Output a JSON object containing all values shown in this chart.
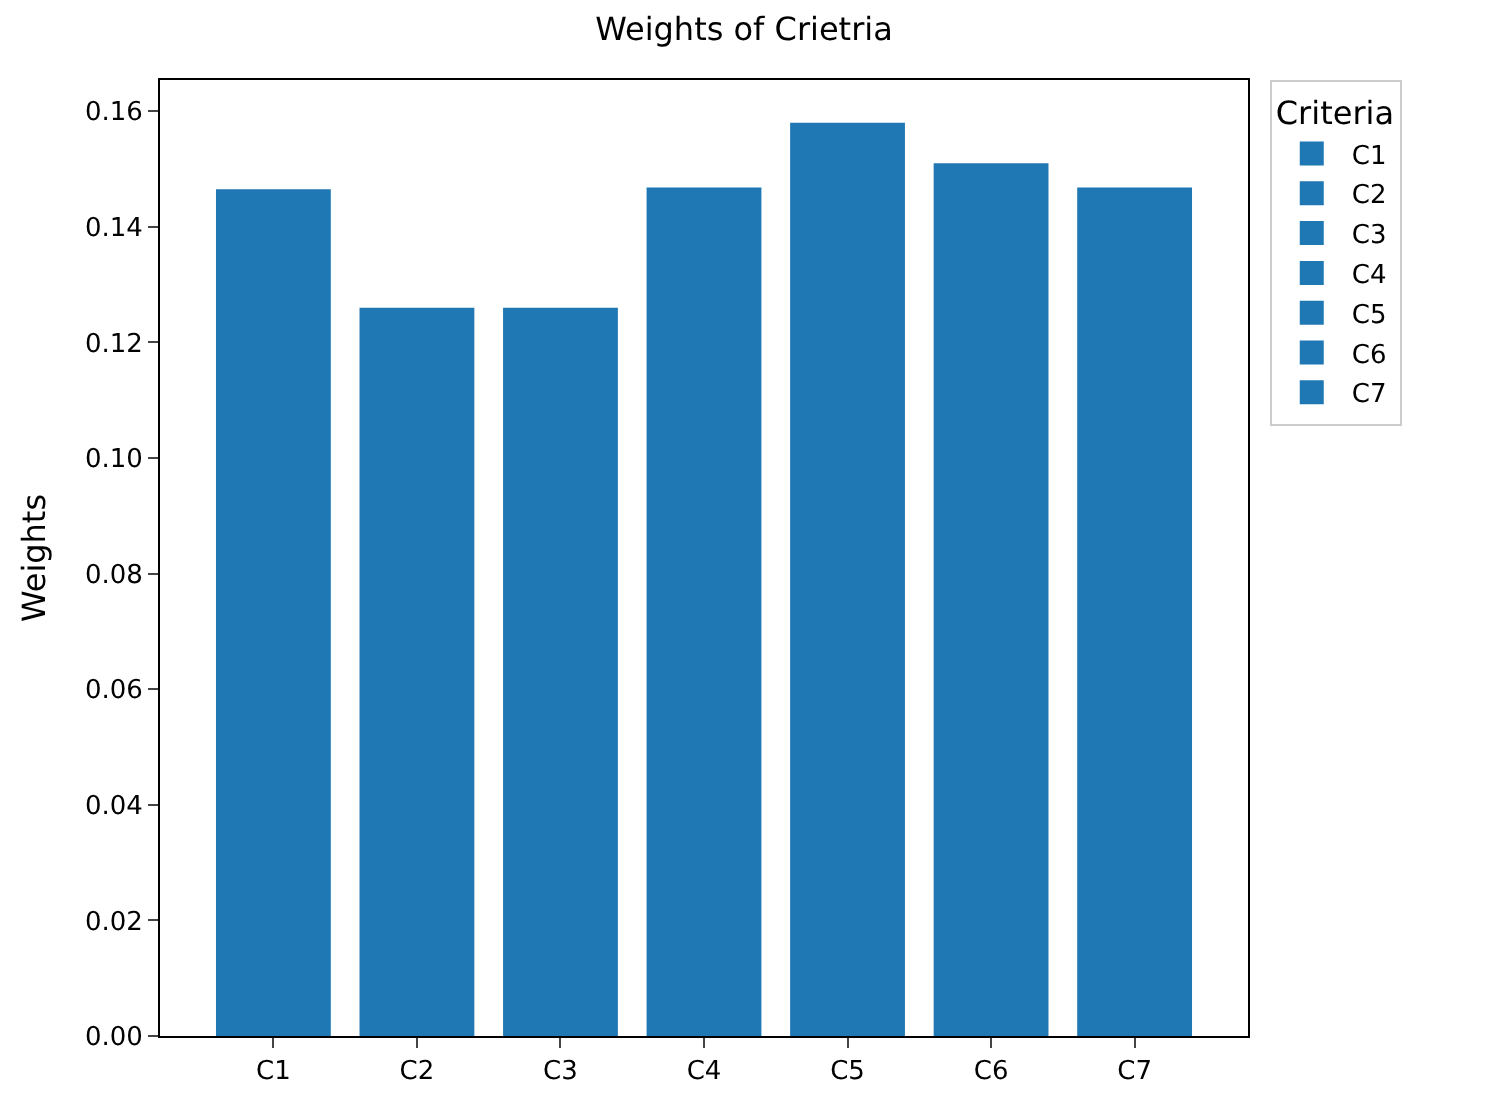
{
  "chart_data": {
    "type": "bar",
    "title": "Weights of Crietria",
    "ylabel": "Weights",
    "legend_title": "Criteria",
    "categories": [
      "C1",
      "C2",
      "C3",
      "C4",
      "C5",
      "C6",
      "C7"
    ],
    "series": [
      {
        "name": "C1",
        "color": "#1f77b4",
        "values": [
          0.1465,
          null,
          null,
          null,
          null,
          null,
          null
        ]
      },
      {
        "name": "C2",
        "color": "#1f77b4",
        "values": [
          null,
          0.126,
          null,
          null,
          null,
          null,
          null
        ]
      },
      {
        "name": "C3",
        "color": "#1f77b4",
        "values": [
          null,
          null,
          0.126,
          null,
          null,
          null,
          null
        ]
      },
      {
        "name": "C4",
        "color": "#1f77b4",
        "values": [
          null,
          null,
          null,
          0.1468,
          null,
          null,
          null
        ]
      },
      {
        "name": "C5",
        "color": "#1f77b4",
        "values": [
          null,
          null,
          null,
          null,
          0.158,
          null,
          null
        ]
      },
      {
        "name": "C6",
        "color": "#1f77b4",
        "values": [
          null,
          null,
          null,
          null,
          null,
          0.151,
          null
        ]
      },
      {
        "name": "C7",
        "color": "#1f77b4",
        "values": [
          null,
          null,
          null,
          null,
          null,
          null,
          0.1468
        ]
      }
    ],
    "ylim": [
      0,
      0.1654
    ],
    "yticks": [
      {
        "value": 0,
        "label": "0.00"
      },
      {
        "value": 0.02,
        "label": "0.02"
      },
      {
        "value": 0.04,
        "label": "0.04"
      },
      {
        "value": 0.06,
        "label": "0.06"
      },
      {
        "value": 0.08,
        "label": "0.08"
      },
      {
        "value": 0.1,
        "label": "0.10"
      },
      {
        "value": 0.12,
        "label": "0.12"
      },
      {
        "value": 0.14,
        "label": "0.14"
      },
      {
        "value": 0.16,
        "label": "0.16"
      }
    ],
    "legend": "top right"
  }
}
